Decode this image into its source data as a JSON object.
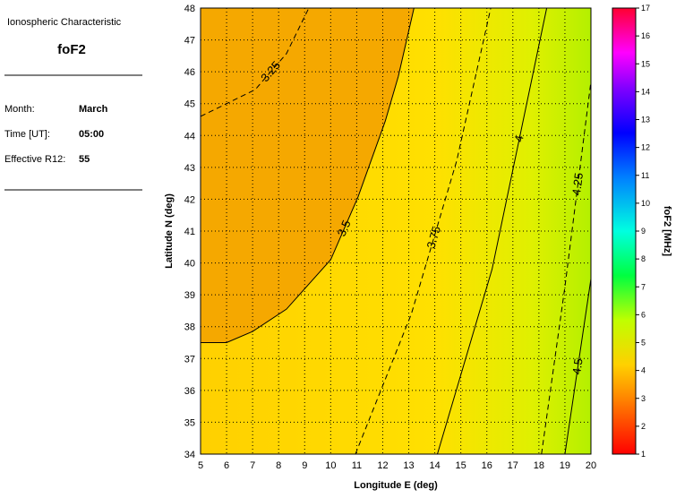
{
  "panel": {
    "title": "Ionospheric Characteristic",
    "parameter": "foF2",
    "fields": [
      {
        "label": "Month:",
        "value": "March"
      },
      {
        "label": "Time [UT]:",
        "value": "05:00"
      },
      {
        "label": "Effective R12:",
        "value": "55"
      }
    ]
  },
  "chart_data": {
    "type": "contour",
    "xlabel": "Longitude E (deg)",
    "ylabel": "Latitude N (deg)",
    "xlim": [
      5,
      20
    ],
    "ylim": [
      34,
      48
    ],
    "xticks": [
      5,
      6,
      7,
      8,
      9,
      10,
      11,
      12,
      13,
      14,
      15,
      16,
      17,
      18,
      19,
      20
    ],
    "yticks": [
      34,
      35,
      36,
      37,
      38,
      39,
      40,
      41,
      42,
      43,
      44,
      45,
      46,
      47,
      48
    ],
    "grid": true,
    "colorbar": {
      "label": "foF2 [MHz]",
      "lim": [
        1,
        17
      ],
      "ticks": [
        1,
        2,
        3,
        4,
        5,
        6,
        7,
        8,
        9,
        10,
        11,
        12,
        13,
        14,
        15,
        16,
        17
      ]
    },
    "contours": [
      {
        "level": 3.25,
        "dashed": true,
        "x": [
          5,
          7.1,
          8.3,
          9.16
        ],
        "y": [
          44.6,
          45.44,
          46.57,
          48
        ]
      },
      {
        "level": 3.5,
        "dashed": false,
        "x": [
          5,
          6,
          7,
          8.3,
          10,
          11.05,
          12.1,
          12.6,
          13.2
        ],
        "y": [
          37.5,
          37.5,
          37.85,
          38.55,
          40.1,
          42.07,
          44.46,
          45.86,
          48
        ]
      },
      {
        "level": 3.75,
        "dashed": true,
        "x": [
          10.95,
          13.1,
          14.84,
          16.15
        ],
        "y": [
          34,
          38.4,
          43.2,
          48
        ]
      },
      {
        "level": 4,
        "dashed": false,
        "x": [
          14.1,
          16.2,
          18.3
        ],
        "y": [
          34,
          39.8,
          48
        ]
      },
      {
        "level": 4.25,
        "dashed": true,
        "x": [
          18.1,
          19,
          20
        ],
        "y": [
          34,
          39.25,
          45.7
        ]
      },
      {
        "level": 4.5,
        "dashed": false,
        "x": [
          19,
          20
        ],
        "y": [
          34,
          39.5
        ]
      }
    ]
  }
}
